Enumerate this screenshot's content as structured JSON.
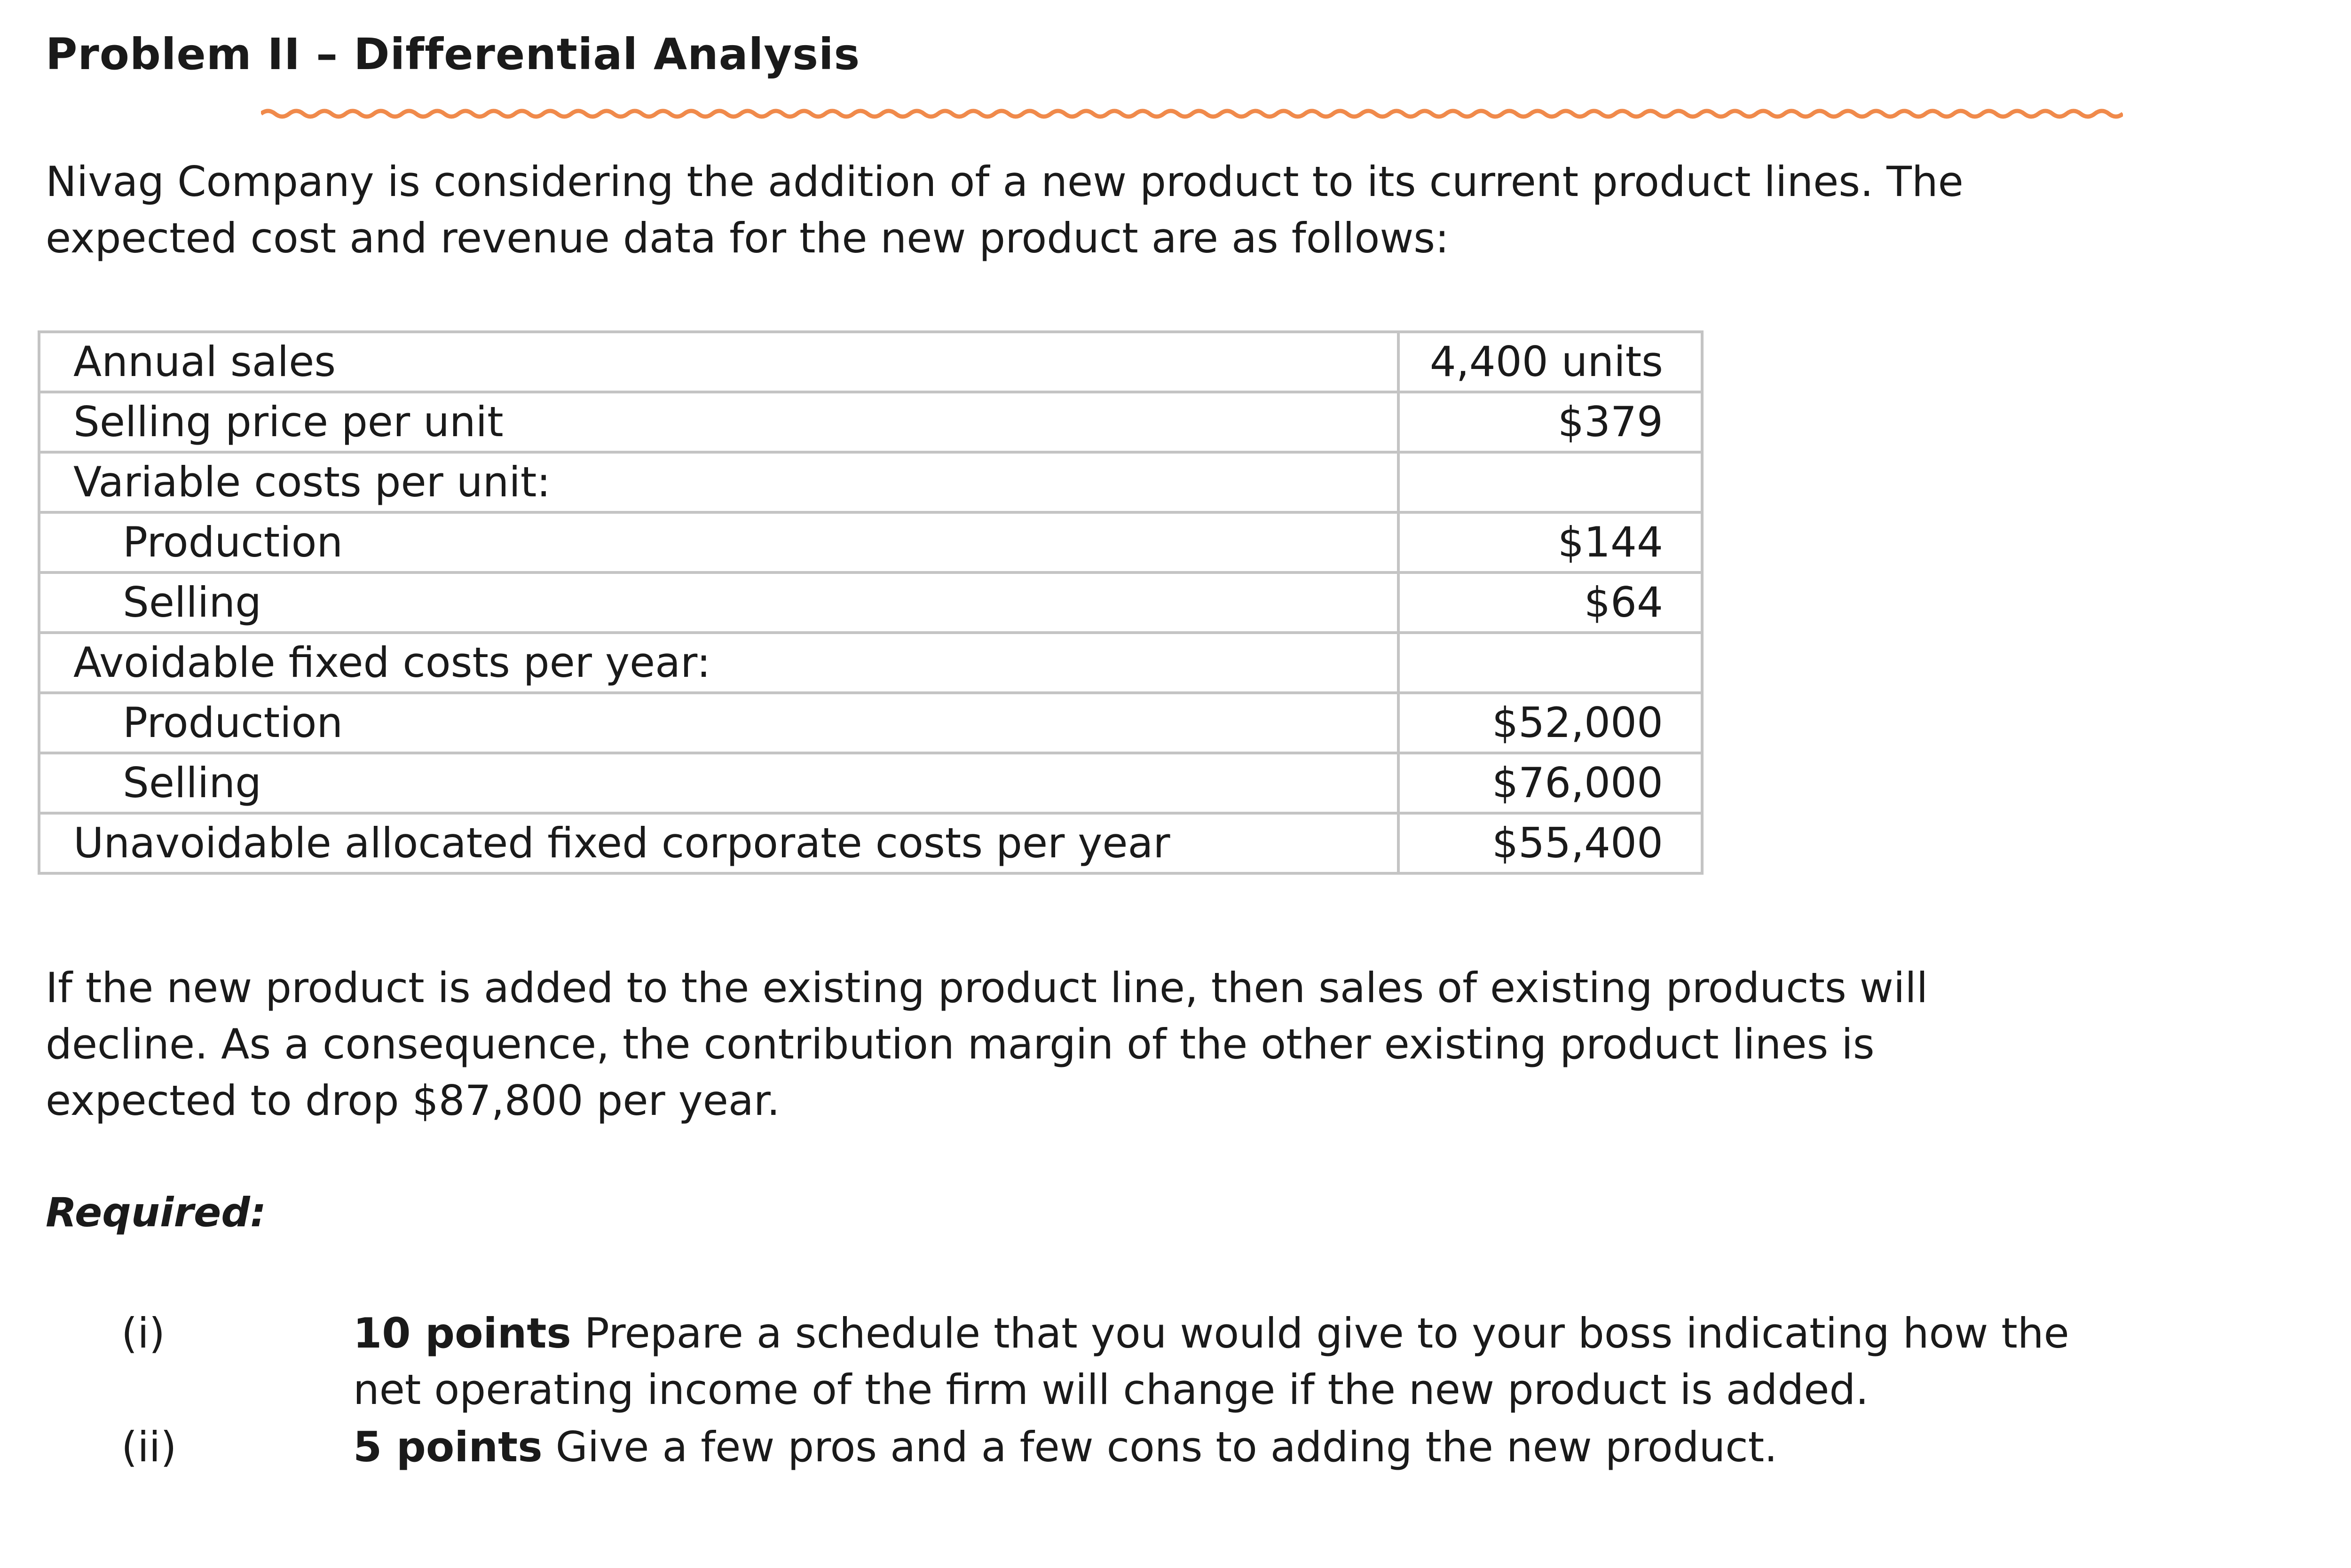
{
  "title": "Problem II – Differential Analysis",
  "colors": {
    "squiggle": "#f08a4b",
    "table_border": "#c4c4c4"
  },
  "intro_lines": [
    "Nivag Company is considering the addition of a new product to its current product lines. The",
    "expected cost and revenue data for the new product are as follows:"
  ],
  "table": [
    {
      "label": "Annual sales",
      "value": "4,400 units",
      "indent": false
    },
    {
      "label": "Selling price per unit",
      "value": "$379",
      "indent": false
    },
    {
      "label": "Variable costs per unit:",
      "value": "",
      "indent": false
    },
    {
      "label": "Production",
      "value": "$144",
      "indent": true
    },
    {
      "label": "Selling",
      "value": "$64",
      "indent": true
    },
    {
      "label": "Avoidable fixed costs per year:",
      "value": "",
      "indent": false
    },
    {
      "label": "Production",
      "value": "$52,000",
      "indent": true
    },
    {
      "label": "Selling",
      "value": "$76,000",
      "indent": true
    },
    {
      "label": "Unavoidable allocated fixed corporate costs per year",
      "value": "$55,400",
      "indent": false
    }
  ],
  "consequence_lines": [
    "If the new product is added to the existing product line, then sales of existing products will",
    "decline. As a consequence, the contribution margin of the other existing product lines is",
    "expected to drop $87,800 per year."
  ],
  "required_label": "Required:",
  "requirements": [
    {
      "num": "(i)",
      "points": "10 points",
      "lines": [
        "Prepare a schedule that you would give to your boss indicating how the",
        "net operating income of the firm will change if the new product is added."
      ]
    },
    {
      "num": "(ii)",
      "points": "5 points",
      "lines": [
        "Give a few pros and a few cons to adding the new product."
      ]
    }
  ]
}
